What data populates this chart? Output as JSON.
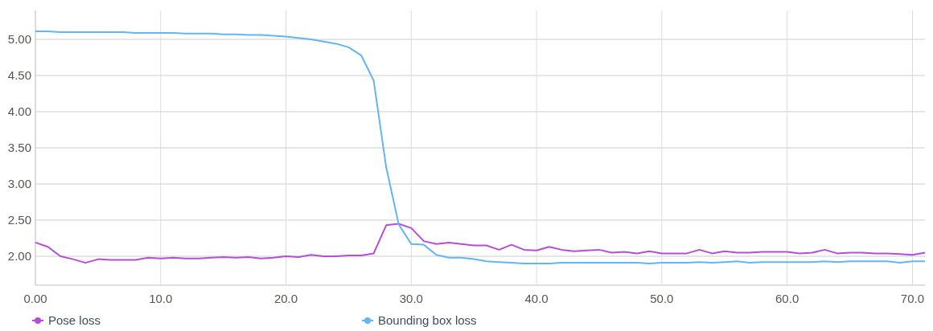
{
  "chart_data": {
    "type": "line",
    "x": [
      0,
      1,
      2,
      3,
      4,
      5,
      6,
      7,
      8,
      9,
      10,
      11,
      12,
      13,
      14,
      15,
      16,
      17,
      18,
      19,
      20,
      21,
      22,
      23,
      24,
      25,
      26,
      27,
      28,
      29,
      30,
      31,
      32,
      33,
      34,
      35,
      36,
      37,
      38,
      39,
      40,
      41,
      42,
      43,
      44,
      45,
      46,
      47,
      48,
      49,
      50,
      51,
      52,
      53,
      54,
      55,
      56,
      57,
      58,
      59,
      60,
      61,
      62,
      63,
      64,
      65,
      66,
      67,
      68,
      69,
      70,
      71
    ],
    "series": [
      {
        "name": "Pose loss",
        "color": "#b54ed6",
        "values": [
          2.19,
          2.13,
          2.0,
          1.96,
          1.91,
          1.96,
          1.95,
          1.95,
          1.95,
          1.98,
          1.97,
          1.98,
          1.97,
          1.97,
          1.98,
          1.99,
          1.98,
          1.99,
          1.97,
          1.98,
          2.0,
          1.99,
          2.02,
          2.0,
          2.0,
          2.01,
          2.01,
          2.04,
          2.43,
          2.45,
          2.39,
          2.21,
          2.17,
          2.19,
          2.17,
          2.15,
          2.15,
          2.09,
          2.16,
          2.09,
          2.08,
          2.13,
          2.09,
          2.07,
          2.08,
          2.09,
          2.05,
          2.06,
          2.04,
          2.07,
          2.04,
          2.04,
          2.04,
          2.09,
          2.04,
          2.07,
          2.05,
          2.05,
          2.06,
          2.06,
          2.06,
          2.04,
          2.05,
          2.09,
          2.04,
          2.05,
          2.05,
          2.04,
          2.04,
          2.03,
          2.02,
          2.05
        ]
      },
      {
        "name": "Bounding box loss",
        "color": "#64b5f6",
        "values": [
          5.11,
          5.11,
          5.1,
          5.1,
          5.1,
          5.1,
          5.1,
          5.1,
          5.09,
          5.09,
          5.09,
          5.09,
          5.08,
          5.08,
          5.08,
          5.07,
          5.07,
          5.06,
          5.06,
          5.05,
          5.04,
          5.02,
          5.0,
          4.97,
          4.94,
          4.89,
          4.78,
          4.43,
          3.23,
          2.44,
          2.17,
          2.16,
          2.02,
          1.98,
          1.98,
          1.96,
          1.93,
          1.92,
          1.91,
          1.9,
          1.9,
          1.9,
          1.91,
          1.91,
          1.91,
          1.91,
          1.91,
          1.91,
          1.91,
          1.9,
          1.91,
          1.91,
          1.91,
          1.92,
          1.91,
          1.92,
          1.93,
          1.91,
          1.92,
          1.92,
          1.92,
          1.92,
          1.92,
          1.93,
          1.92,
          1.93,
          1.93,
          1.93,
          1.93,
          1.91,
          1.93,
          1.93
        ]
      }
    ],
    "xlim": [
      0,
      71
    ],
    "xticks": [
      {
        "value": 0,
        "label": "0.00"
      },
      {
        "value": 10,
        "label": "10.0"
      },
      {
        "value": 20,
        "label": "20.0"
      },
      {
        "value": 30,
        "label": "30.0"
      },
      {
        "value": 40,
        "label": "40.0"
      },
      {
        "value": 50,
        "label": "50.0"
      },
      {
        "value": 60,
        "label": "60.0"
      },
      {
        "value": 70,
        "label": "70.0"
      }
    ],
    "ylim": [
      1.6,
      5.4
    ],
    "yticks": [
      {
        "value": 2,
        "label": "2.00"
      },
      {
        "value": 2.5,
        "label": "2.50"
      },
      {
        "value": 3,
        "label": "3.00"
      },
      {
        "value": 3.5,
        "label": "3.50"
      },
      {
        "value": 4,
        "label": "4.00"
      },
      {
        "value": 4.5,
        "label": "4.50"
      },
      {
        "value": 5,
        "label": "5.00"
      }
    ],
    "grid": true,
    "legend": "bottom",
    "marker": "none",
    "line_style": "solid"
  }
}
